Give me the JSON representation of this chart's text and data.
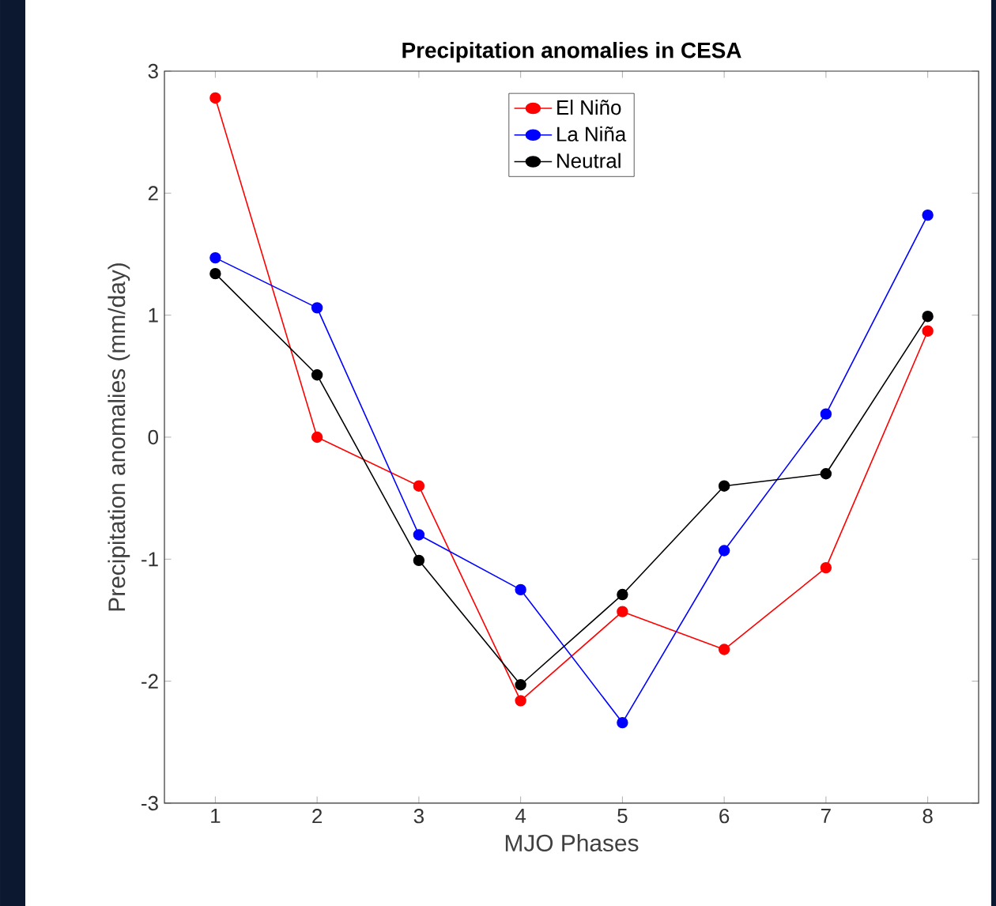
{
  "chart_data": {
    "type": "line",
    "title": "Precipitation anomalies in CESA",
    "xlabel": "MJO Phases",
    "ylabel": "Precipitation anomalies (mm/day)",
    "x": [
      1,
      2,
      3,
      4,
      5,
      6,
      7,
      8
    ],
    "series": [
      {
        "name": "El Niño",
        "color": "#ff0000",
        "values": [
          2.78,
          0.0,
          -0.4,
          -2.16,
          -1.43,
          -1.74,
          -1.07,
          0.87
        ]
      },
      {
        "name": "La Niña",
        "color": "#0000ff",
        "values": [
          1.47,
          1.06,
          -0.8,
          -1.25,
          -2.34,
          -0.93,
          0.19,
          1.82
        ]
      },
      {
        "name": "Neutral",
        "color": "#000000",
        "values": [
          1.34,
          0.51,
          -1.01,
          -2.03,
          -1.29,
          -0.4,
          -0.3,
          0.99
        ]
      }
    ],
    "xlim": [
      0.5,
      8.5
    ],
    "xticks": [
      1,
      2,
      3,
      4,
      5,
      6,
      7,
      8
    ],
    "ylim": [
      -3,
      3
    ],
    "yticks": [
      -3,
      -2,
      -1,
      0,
      1,
      2,
      3
    ],
    "grid": false,
    "legend": "top",
    "marker": "circle",
    "line_style": "solid"
  }
}
